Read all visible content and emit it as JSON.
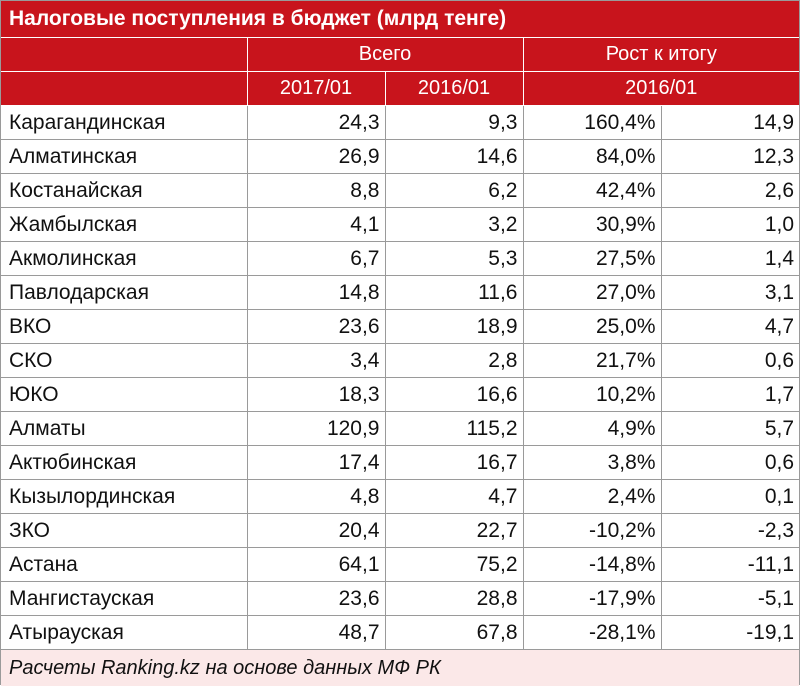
{
  "title": "Налоговые поступления в бюджет (млрд тенге)",
  "header": {
    "group_total": "Всего",
    "group_growth": "Рост к итогу",
    "col_2017": "2017/01",
    "col_2016": "2016/01",
    "col_growth_period": "2016/01"
  },
  "rows": [
    {
      "region": "Карагандинская",
      "v2017": "24,3",
      "v2016": "9,3",
      "pct": "160,4%",
      "diff": "14,9"
    },
    {
      "region": "Алматинская",
      "v2017": "26,9",
      "v2016": "14,6",
      "pct": "84,0%",
      "diff": "12,3"
    },
    {
      "region": "Костанайская",
      "v2017": "8,8",
      "v2016": "6,2",
      "pct": "42,4%",
      "diff": "2,6"
    },
    {
      "region": "Жамбылская",
      "v2017": "4,1",
      "v2016": "3,2",
      "pct": "30,9%",
      "diff": "1,0"
    },
    {
      "region": "Акмолинская",
      "v2017": "6,7",
      "v2016": "5,3",
      "pct": "27,5%",
      "diff": "1,4"
    },
    {
      "region": "Павлодарская",
      "v2017": "14,8",
      "v2016": "11,6",
      "pct": "27,0%",
      "diff": "3,1"
    },
    {
      "region": "ВКО",
      "v2017": "23,6",
      "v2016": "18,9",
      "pct": "25,0%",
      "diff": "4,7"
    },
    {
      "region": "СКО",
      "v2017": "3,4",
      "v2016": "2,8",
      "pct": "21,7%",
      "diff": "0,6"
    },
    {
      "region": "ЮКО",
      "v2017": "18,3",
      "v2016": "16,6",
      "pct": "10,2%",
      "diff": "1,7"
    },
    {
      "region": "Алматы",
      "v2017": "120,9",
      "v2016": "115,2",
      "pct": "4,9%",
      "diff": "5,7"
    },
    {
      "region": "Актюбинская",
      "v2017": "17,4",
      "v2016": "16,7",
      "pct": "3,8%",
      "diff": "0,6"
    },
    {
      "region": "Кызылординская",
      "v2017": "4,8",
      "v2016": "4,7",
      "pct": "2,4%",
      "diff": "0,1"
    },
    {
      "region": "ЗКО",
      "v2017": "20,4",
      "v2016": "22,7",
      "pct": "-10,2%",
      "diff": "-2,3"
    },
    {
      "region": "Астана",
      "v2017": "64,1",
      "v2016": "75,2",
      "pct": "-14,8%",
      "diff": "-11,1"
    },
    {
      "region": "Мангистауская",
      "v2017": "23,6",
      "v2016": "28,8",
      "pct": "-17,9%",
      "diff": "-5,1"
    },
    {
      "region": "Атырауская",
      "v2017": "48,7",
      "v2016": "67,8",
      "pct": "-28,1%",
      "diff": "-19,1"
    }
  ],
  "footnote": "Расчеты Ranking.kz на основе данных МФ РК",
  "colors": {
    "header_red": "#c8141c",
    "footer_tint": "#fbe8e8"
  }
}
